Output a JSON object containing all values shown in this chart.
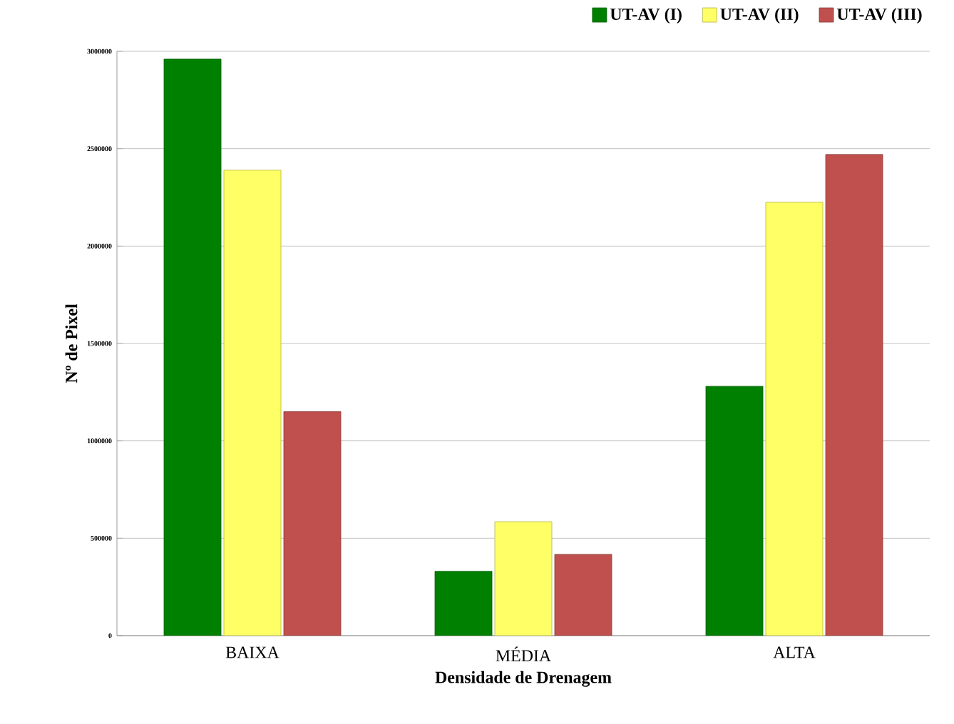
{
  "chart_data": {
    "type": "bar",
    "xlabel": "Densidade de Drenagem",
    "ylabel": "Nº de Pixel",
    "categories": [
      "BAIXA",
      "MÉDIA",
      "ALTA"
    ],
    "series": [
      {
        "name": "UT-AV (I)",
        "color": "#008000",
        "values": [
          2960000,
          330000,
          1280000
        ]
      },
      {
        "name": "UT-AV (II)",
        "color": "#ffff66",
        "values": [
          2390000,
          585000,
          2225000
        ]
      },
      {
        "name": "UT-AV (III)",
        "color": "#c0504d",
        "values": [
          1150000,
          417000,
          2470000
        ]
      }
    ],
    "ylim": [
      0,
      3000000
    ],
    "yticks": [
      0,
      500000,
      1000000,
      1500000,
      2000000,
      2500000,
      3000000
    ],
    "grid": "y",
    "legend": "top right"
  }
}
